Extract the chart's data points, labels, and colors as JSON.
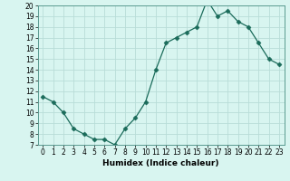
{
  "x": [
    0,
    1,
    2,
    3,
    4,
    5,
    6,
    7,
    8,
    9,
    10,
    11,
    12,
    13,
    14,
    15,
    16,
    17,
    18,
    19,
    20,
    21,
    22,
    23
  ],
  "y": [
    11.5,
    11.0,
    10.0,
    8.5,
    8.0,
    7.5,
    7.5,
    7.0,
    8.5,
    9.5,
    11.0,
    14.0,
    16.5,
    17.0,
    17.5,
    18.0,
    20.5,
    19.0,
    19.5,
    18.5,
    18.0,
    16.5,
    15.0,
    14.5
  ],
  "xlabel": "Humidex (Indice chaleur)",
  "xlim": [
    -0.5,
    23.5
  ],
  "ylim": [
    7,
    20
  ],
  "yticks": [
    7,
    8,
    9,
    10,
    11,
    12,
    13,
    14,
    15,
    16,
    17,
    18,
    19,
    20
  ],
  "xticks": [
    0,
    1,
    2,
    3,
    4,
    5,
    6,
    7,
    8,
    9,
    10,
    11,
    12,
    13,
    14,
    15,
    16,
    17,
    18,
    19,
    20,
    21,
    22,
    23
  ],
  "line_color": "#1a6b5a",
  "marker": "D",
  "marker_size": 2.5,
  "bg_color": "#d8f5f0",
  "grid_color": "#b8ddd8",
  "label_fontsize": 6.5,
  "tick_fontsize": 5.5
}
